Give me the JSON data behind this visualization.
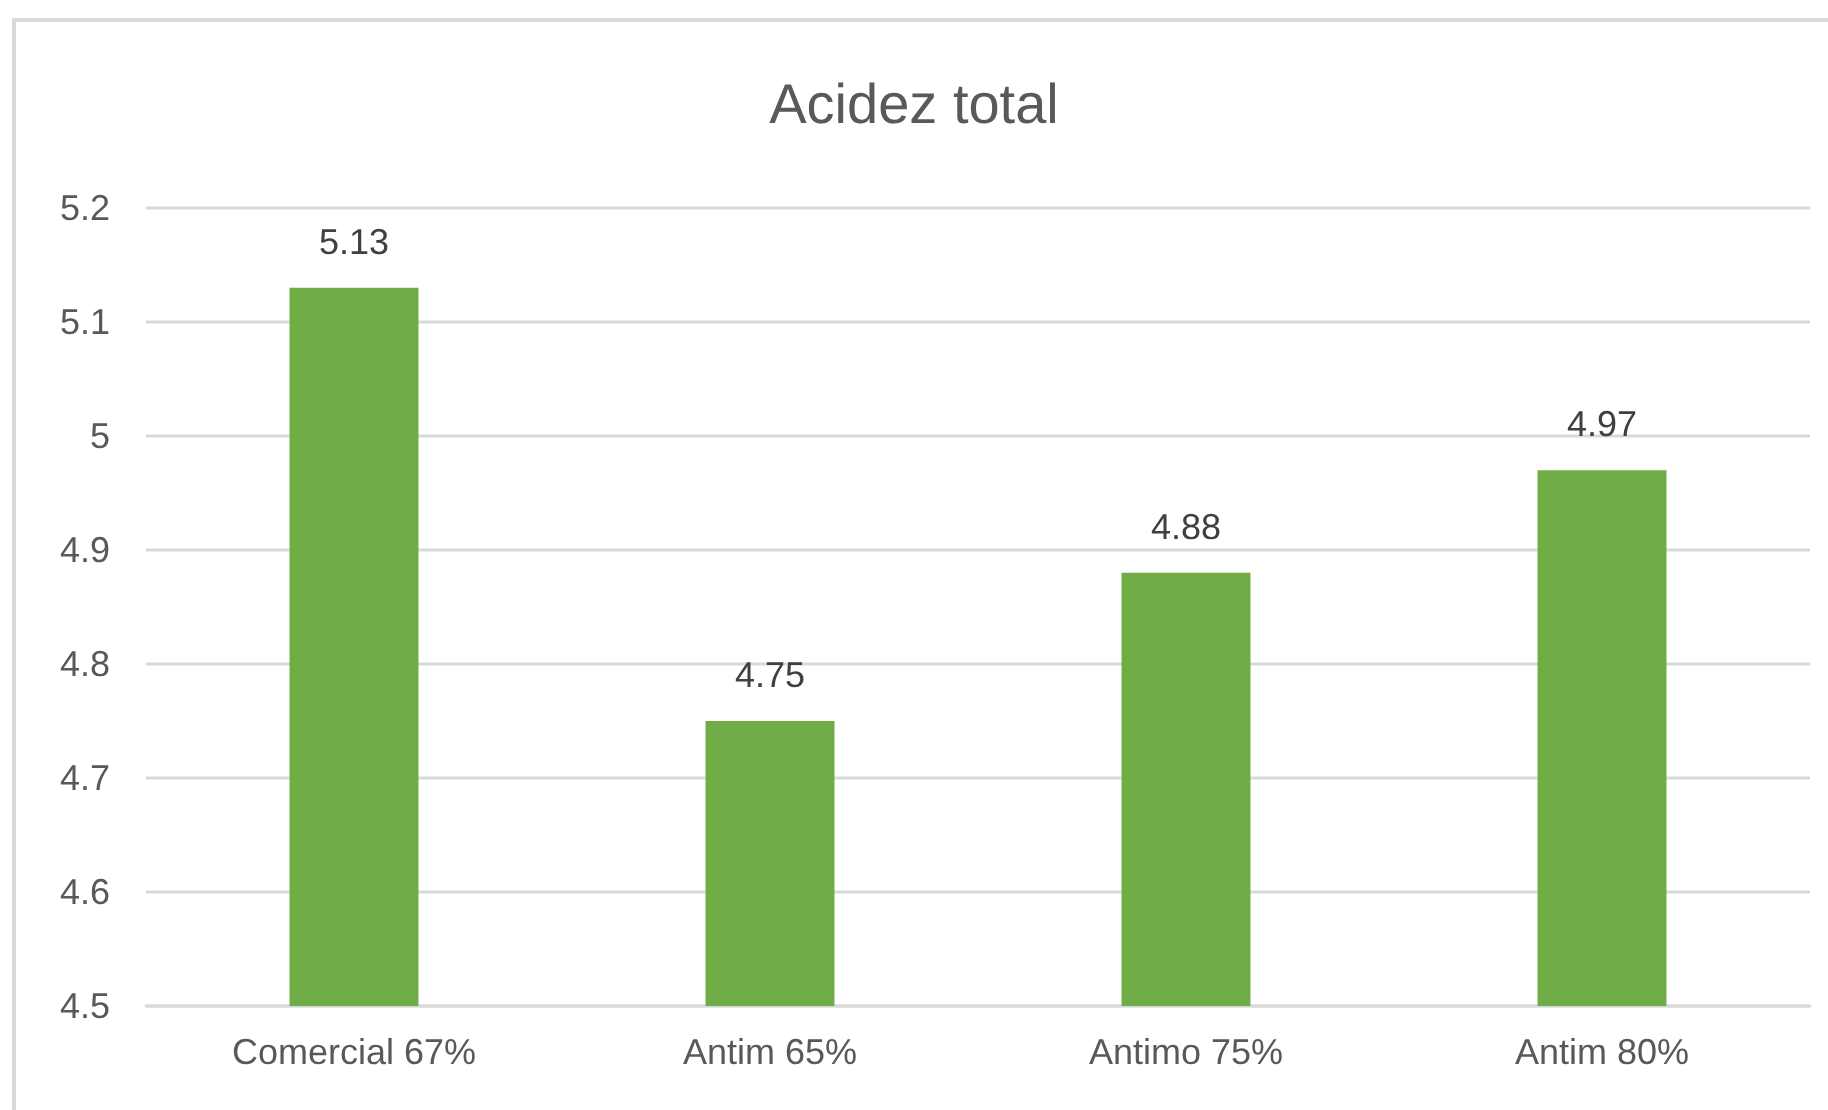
{
  "chart_data": {
    "type": "bar",
    "title": "Acidez total",
    "categories": [
      "Comercial 67%",
      "Antim 65%",
      "Antimo 75%",
      "Antim 80%"
    ],
    "values": [
      5.13,
      4.75,
      4.88,
      4.97
    ],
    "color": "#70ad47",
    "ylim": [
      4.5,
      5.2
    ],
    "yticks": [
      4.5,
      4.6,
      4.7,
      4.8,
      4.9,
      5,
      5.1,
      5.2
    ],
    "grid": "y",
    "data_labels": true
  }
}
